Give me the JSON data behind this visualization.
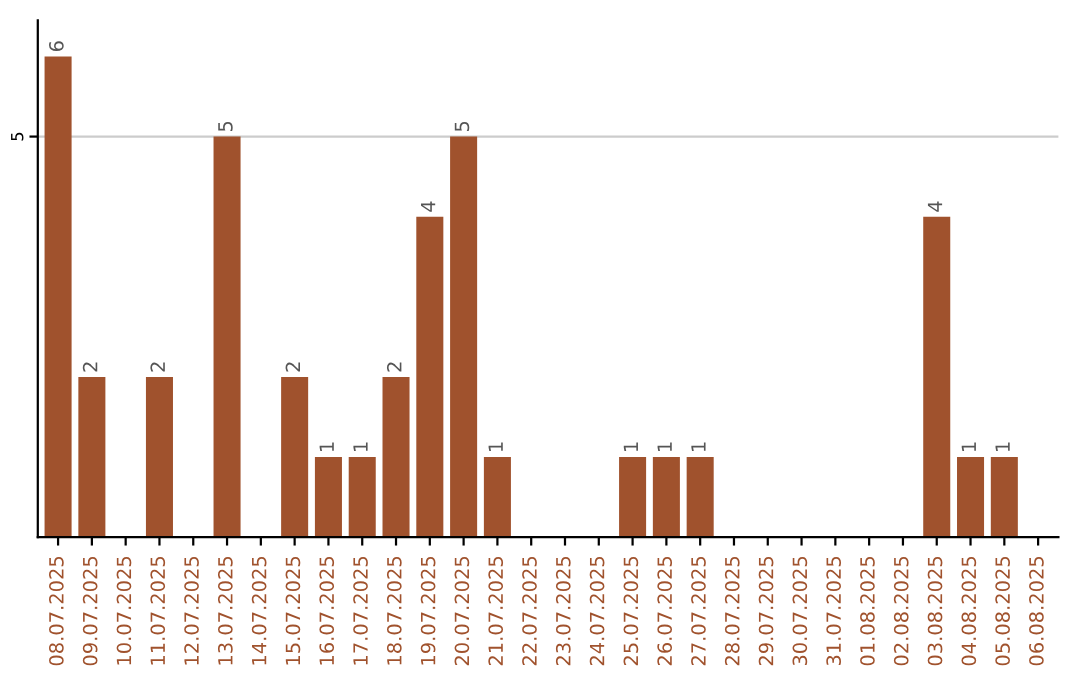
{
  "chart_data": {
    "type": "bar",
    "categories": [
      "08.07.2025",
      "09.07.2025",
      "10.07.2025",
      "11.07.2025",
      "12.07.2025",
      "13.07.2025",
      "14.07.2025",
      "15.07.2025",
      "16.07.2025",
      "17.07.2025",
      "18.07.2025",
      "19.07.2025",
      "20.07.2025",
      "21.07.2025",
      "22.07.2025",
      "23.07.2025",
      "24.07.2025",
      "25.07.2025",
      "26.07.2025",
      "27.07.2025",
      "28.07.2025",
      "29.07.2025",
      "30.07.2025",
      "31.07.2025",
      "01.08.2025",
      "02.08.2025",
      "03.08.2025",
      "04.08.2025",
      "05.08.2025",
      "06.08.2025"
    ],
    "values": [
      6,
      2,
      0,
      2,
      0,
      5,
      0,
      2,
      1,
      1,
      2,
      4,
      5,
      1,
      0,
      0,
      0,
      1,
      1,
      1,
      0,
      0,
      0,
      0,
      0,
      0,
      4,
      1,
      1,
      0
    ],
    "value_labels": [
      "6",
      "2",
      null,
      "2",
      null,
      "5",
      null,
      "2",
      "1",
      "1",
      "2",
      "4",
      "5",
      "1",
      null,
      null,
      null,
      "1",
      "1",
      "1",
      null,
      null,
      null,
      null,
      null,
      null,
      "4",
      "1",
      "1",
      null
    ],
    "color": "#a0522d",
    "ylim": [
      0,
      6.45
    ],
    "yticks": [
      5
    ],
    "grid": "y"
  }
}
